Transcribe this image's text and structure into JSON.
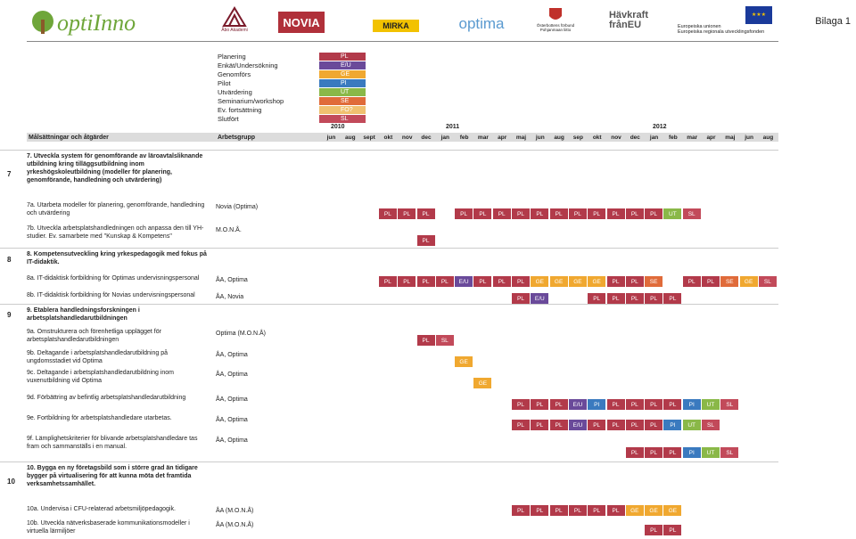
{
  "logos": {
    "optiinno": "optiInno",
    "abo": "Åbo Akademi",
    "novia": "NOVIA",
    "mirka": "MIRKA",
    "optima": "optima",
    "osterbottens": "Österbottens förbund\nPohjanmaan liitto",
    "havkraft": "Hävkraft\nfrånEU",
    "eu": "Europeiska unionen\nEuropeiska regionala utvecklingsfonden"
  },
  "bilaga": "Bilaga 1",
  "legend": [
    {
      "label": "Planering",
      "code": "PL",
      "color": "#b23a4a"
    },
    {
      "label": "Enkät/Undersökning",
      "code": "E/U",
      "color": "#6a4a9a"
    },
    {
      "label": "Genomförs",
      "code": "GE",
      "color": "#f0a830"
    },
    {
      "label": "Pilot",
      "code": "PI",
      "color": "#3a7abf"
    },
    {
      "label": "Utvärdering",
      "code": "UT",
      "color": "#8ab848"
    },
    {
      "label": "Seminarium/workshop",
      "code": "SE",
      "color": "#e06b3a"
    },
    {
      "label": "Ev. fortsättning",
      "code": "FO?",
      "color": "#f0c070"
    },
    {
      "label": "Slutfört",
      "code": "SL",
      "color": "#c24a5a"
    }
  ],
  "years": [
    "2010",
    "2011",
    "2012"
  ],
  "header": {
    "goal": "Målsättningar och åtgärder",
    "group": "Arbetsgrupp"
  },
  "months": [
    "jun",
    "aug",
    "sept",
    "okt",
    "nov",
    "dec",
    "jan",
    "feb",
    "mar",
    "apr",
    "maj",
    "jun",
    "aug",
    "sep",
    "okt",
    "nov",
    "dec",
    "jan",
    "feb",
    "mar",
    "apr",
    "maj",
    "jun",
    "aug"
  ],
  "rows": [
    {
      "num": "7",
      "text": "7. Utveckla system för genomförande av läroavtalsliknande utbildning kring tilläggsutbildning inom yrkeshögskoleutbildning (modeller för planering, genomförande, handledning och utvärdering)",
      "bold": true,
      "group": ""
    },
    {
      "num": "",
      "text": "7a. Utarbeta modeller för planering, genomförande, handledning och utvärdering",
      "bold": false,
      "group": "Novia (Optima)"
    },
    {
      "num": "",
      "text": "7b. Utveckla arbetsplatshandledningen och anpassa den till YH-studier. Ev. samarbete med \"Kunskap & Kompetens\"",
      "bold": false,
      "group": "M.O.N.Å."
    },
    {
      "num": "8",
      "text": "8. Kompetensutveckling kring yrkespedagogik med fokus på IT-didaktik.",
      "bold": true,
      "group": ""
    },
    {
      "num": "",
      "text": "8a. IT-didaktisk fortbildning för Optimas undervisningspersonal",
      "bold": false,
      "group": "ÅA, Optima"
    },
    {
      "num": "",
      "text": "8b. IT-didaktisk fortbildning för Novias undervisningspersonal",
      "bold": false,
      "group": "ÅA, Novia"
    },
    {
      "num": "9",
      "text": "9. Etablera handledningsforskningen i arbetsplatshandledarutbildningen",
      "bold": true,
      "group": ""
    },
    {
      "num": "",
      "text": "9a. Omstrukturera och förenhetliga upplägget för arbetsplatshandledarutbildningen",
      "bold": false,
      "group": "Optima (M.O.N.Å)"
    },
    {
      "num": "",
      "text": "9b. Deltagande i arbetsplatshandledarutbildning på ungdomsstadiet vid Optima",
      "bold": false,
      "group": "ÅA, Optima"
    },
    {
      "num": "",
      "text": "9c. Deltagande i arbetsplatshandledarutbildning inom vuxenutbildning vid Optima",
      "bold": false,
      "group": "ÅA, Optima"
    },
    {
      "num": "",
      "text": "9d. Förbättring av befintlig arbetsplatshandledarutbildning",
      "bold": false,
      "group": "ÅA, Optima"
    },
    {
      "num": "",
      "text": "9e. Fortbildning för arbetsplatshandledare utarbetas.",
      "bold": false,
      "group": "ÅA, Optima"
    },
    {
      "num": "",
      "text": "9f. Lämplighetskriterier för blivande arbetsplatshandledare tas fram och sammanställs i en manual.",
      "bold": false,
      "group": "ÅA, Optima"
    },
    {
      "num": "10",
      "text": "10. Bygga en ny företagsbild som i större grad än tidigare bygger på virtualisering för att kunna möta det framtida verksamhetssamhället.",
      "bold": true,
      "group": ""
    },
    {
      "num": "",
      "text": "10a. Undervisa i CFU-relaterad arbetsmiljöpedagogik.",
      "bold": false,
      "group": "ÅA (M.O.N.Å)"
    },
    {
      "num": "",
      "text": "10b. Utveckla nätverksbaserade kommunikationsmodeller i virtuella lärmiljöer",
      "bold": false,
      "group": "ÅA (M.O.N.Å)"
    }
  ],
  "cells": [
    {
      "row": 1,
      "cells": [
        [
          4,
          "PL"
        ],
        [
          5,
          "PL"
        ],
        [
          6,
          "PL"
        ],
        [
          8,
          "PL"
        ],
        [
          9,
          "PL"
        ],
        [
          10,
          "PL"
        ],
        [
          11,
          "PL"
        ],
        [
          12,
          "PL"
        ],
        [
          13,
          "PL"
        ],
        [
          14,
          "PL"
        ],
        [
          15,
          "PL"
        ],
        [
          16,
          "PL"
        ],
        [
          17,
          "PL"
        ],
        [
          18,
          "PL"
        ],
        [
          19,
          "UT"
        ],
        [
          20,
          "SL"
        ]
      ]
    },
    {
      "row": 2,
      "cells": [
        [
          6,
          "PL"
        ]
      ]
    },
    {
      "row": 4,
      "cells": [
        [
          4,
          "PL"
        ],
        [
          5,
          "PL"
        ],
        [
          6,
          "PL"
        ],
        [
          7,
          "PL"
        ],
        [
          8,
          "E/U"
        ],
        [
          9,
          "PL"
        ],
        [
          10,
          "PL"
        ],
        [
          11,
          "PL"
        ],
        [
          12,
          "GE"
        ],
        [
          13,
          "GE"
        ],
        [
          14,
          "GE"
        ],
        [
          15,
          "GE"
        ],
        [
          16,
          "PL"
        ],
        [
          17,
          "PL"
        ],
        [
          18,
          "SE"
        ],
        [
          20,
          "PL"
        ],
        [
          21,
          "PL"
        ],
        [
          22,
          "SE"
        ],
        [
          23,
          "GE"
        ],
        [
          24,
          "SL"
        ]
      ]
    },
    {
      "row": 5,
      "cells": [
        [
          11,
          "PL"
        ],
        [
          12,
          "E/U"
        ],
        [
          15,
          "PL"
        ],
        [
          16,
          "PL"
        ],
        [
          17,
          "PL"
        ],
        [
          18,
          "PL"
        ],
        [
          19,
          "PL"
        ]
      ]
    },
    {
      "row": 7,
      "cells": [
        [
          6,
          "PL"
        ],
        [
          7,
          "SL"
        ]
      ]
    },
    {
      "row": 8,
      "cells": [
        [
          8,
          "GE"
        ]
      ]
    },
    {
      "row": 9,
      "cells": [
        [
          9,
          "GE"
        ]
      ]
    },
    {
      "row": 10,
      "cells": [
        [
          11,
          "PL"
        ],
        [
          12,
          "PL"
        ],
        [
          13,
          "PL"
        ],
        [
          14,
          "E/U"
        ],
        [
          15,
          "PI"
        ],
        [
          16,
          "PL"
        ],
        [
          17,
          "PL"
        ],
        [
          18,
          "PL"
        ],
        [
          19,
          "PL"
        ],
        [
          20,
          "PI"
        ],
        [
          21,
          "UT"
        ],
        [
          22,
          "SL"
        ]
      ]
    },
    {
      "row": 11,
      "cells": [
        [
          11,
          "PL"
        ],
        [
          12,
          "PL"
        ],
        [
          13,
          "PL"
        ],
        [
          14,
          "E/U"
        ],
        [
          15,
          "PL"
        ],
        [
          16,
          "PL"
        ],
        [
          17,
          "PL"
        ],
        [
          18,
          "PL"
        ],
        [
          19,
          "PI"
        ],
        [
          20,
          "UT"
        ],
        [
          21,
          "SL"
        ]
      ]
    },
    {
      "row": 12,
      "cells": [
        [
          17,
          "PL"
        ],
        [
          18,
          "PL"
        ],
        [
          19,
          "PL"
        ],
        [
          20,
          "PI"
        ],
        [
          21,
          "UT"
        ],
        [
          22,
          "SL"
        ]
      ]
    },
    {
      "row": 14,
      "cells": [
        [
          11,
          "PL"
        ],
        [
          12,
          "PL"
        ],
        [
          13,
          "PL"
        ],
        [
          14,
          "PL"
        ],
        [
          15,
          "PL"
        ],
        [
          16,
          "PL"
        ],
        [
          17,
          "GE"
        ],
        [
          18,
          "GE"
        ],
        [
          19,
          "GE"
        ]
      ]
    },
    {
      "row": 15,
      "cells": [
        [
          18,
          "PL"
        ],
        [
          19,
          "PL"
        ]
      ]
    }
  ]
}
